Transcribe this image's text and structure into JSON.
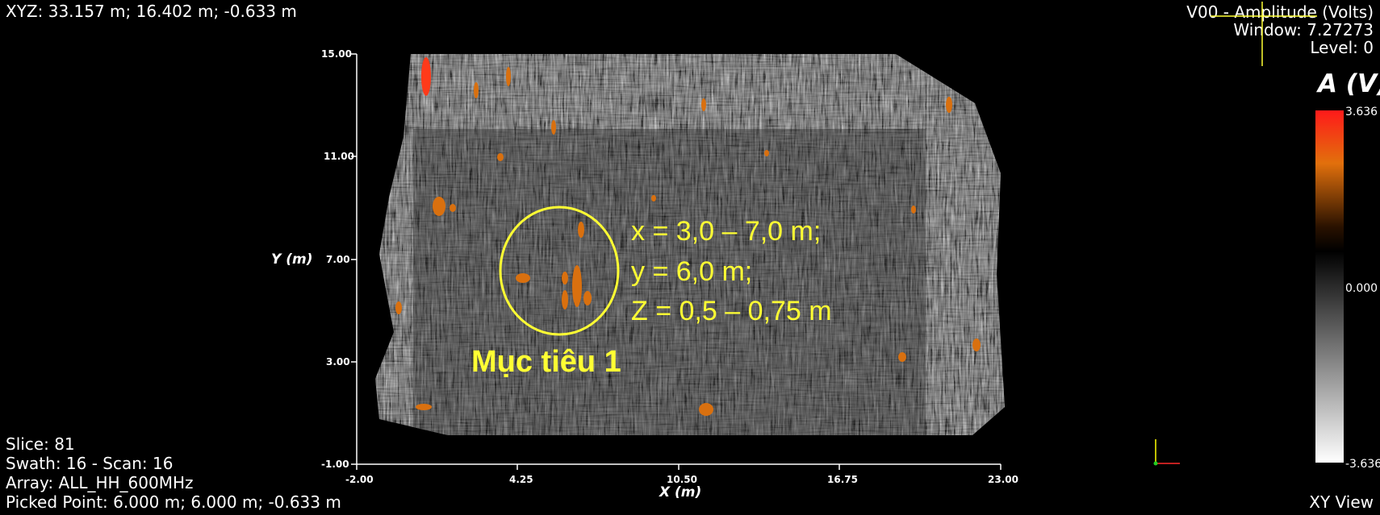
{
  "hud": {
    "cursor_xyz": "XYZ: 33.157 m; 16.402 m; -0.633 m",
    "volume_title": "V00 - Amplitude (Volts)",
    "window": "Window: 7.27273",
    "level": "Level: 0",
    "slice": "Slice:  81",
    "swath": "Swath: 16 - Scan: 16",
    "array": "Array: ALL_HH_600MHz",
    "picked_point": "Picked Point:  6.000 m; 6.000 m; -0.633 m",
    "view_name": "XY View"
  },
  "plot": {
    "x_label": "X (m)",
    "y_label": "Y (m)",
    "x_ticks": [
      "-2.00",
      "4.25",
      "10.50",
      "16.75",
      "23.00"
    ],
    "y_ticks": [
      "15.00",
      "11.00",
      "7.00",
      "3.00",
      "-1.00"
    ]
  },
  "annotation": {
    "line1": "x = 3,0 – 7,0 m;",
    "line2": "y = 6,0 m;",
    "line3": "Z = 0,5 – 0,75 m",
    "target_label": "Mục tiêu 1",
    "color": "#ffff33"
  },
  "colorbar": {
    "title": "A (V)",
    "max": "3.636",
    "mid": "0.000",
    "min": "-3.636",
    "colors": [
      "#ff1a1a",
      "#e2700c",
      "#000000",
      "#ffffff"
    ]
  },
  "axes_gizmo": {
    "x_color": "#ff2a2a",
    "y_color": "#ffff00",
    "z_color": "#22cc22"
  }
}
